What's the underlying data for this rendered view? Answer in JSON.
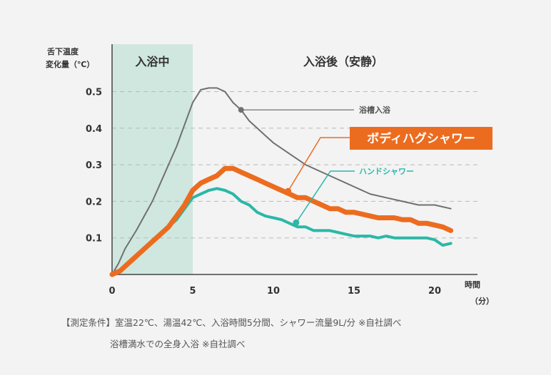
{
  "chart_data": {
    "type": "line",
    "ylabel_line1": "舌下温度",
    "ylabel_line2": "変化量（℃）",
    "xlabel_line1": "時間",
    "xlabel_line2": "（分）",
    "xlim": [
      0,
      22
    ],
    "ylim": [
      0,
      0.55
    ],
    "x_ticks": [
      0,
      5,
      10,
      15,
      20
    ],
    "x_tick_labels": [
      "0",
      "5",
      "10",
      "15",
      "20"
    ],
    "y_ticks": [
      0.1,
      0.2,
      0.3,
      0.4,
      0.5
    ],
    "y_tick_labels": [
      "0.1",
      "0.2",
      "0.3",
      "0.4",
      "0.5"
    ],
    "grid": "horizontal dashed",
    "zones": [
      {
        "label": "入浴中",
        "x_start": 0,
        "x_end": 5,
        "color": "#cfe7df"
      },
      {
        "label": "入浴後（安静）",
        "x_start": 5,
        "x_end": 21
      }
    ],
    "series": [
      {
        "name": "浴槽入浴",
        "color": "#707070",
        "width": 2,
        "x": [
          0,
          0.4,
          0.8,
          1.5,
          2,
          2.5,
          3,
          3.5,
          4,
          4.5,
          5,
          5.5,
          6,
          6.5,
          7,
          7.5,
          8,
          8.5,
          9,
          9.5,
          10,
          11,
          12,
          13,
          14,
          15,
          16,
          17,
          18,
          19,
          20,
          21
        ],
        "values": [
          0,
          0.03,
          0.07,
          0.12,
          0.16,
          0.2,
          0.25,
          0.3,
          0.35,
          0.41,
          0.47,
          0.505,
          0.51,
          0.51,
          0.5,
          0.47,
          0.45,
          0.42,
          0.4,
          0.38,
          0.36,
          0.33,
          0.3,
          0.28,
          0.26,
          0.24,
          0.22,
          0.21,
          0.2,
          0.19,
          0.19,
          0.18
        ]
      },
      {
        "name": "ボディハグシャワー",
        "color": "#ec6c1f",
        "width": 7,
        "x": [
          0,
          0.5,
          1,
          1.5,
          2,
          2.5,
          3,
          3.5,
          4,
          4.5,
          5,
          5.5,
          6,
          6.5,
          7,
          7.5,
          8,
          8.5,
          9,
          9.5,
          10,
          10.5,
          11,
          11.5,
          12,
          12.5,
          13,
          13.5,
          14,
          14.5,
          15,
          15.5,
          16,
          16.5,
          17,
          17.5,
          18,
          18.5,
          19,
          19.5,
          20,
          20.5,
          21
        ],
        "values": [
          0,
          0.01,
          0.03,
          0.05,
          0.07,
          0.09,
          0.11,
          0.13,
          0.16,
          0.19,
          0.23,
          0.25,
          0.26,
          0.27,
          0.29,
          0.29,
          0.28,
          0.27,
          0.26,
          0.25,
          0.24,
          0.23,
          0.22,
          0.21,
          0.21,
          0.2,
          0.19,
          0.18,
          0.18,
          0.17,
          0.17,
          0.165,
          0.16,
          0.155,
          0.155,
          0.155,
          0.15,
          0.15,
          0.14,
          0.14,
          0.135,
          0.13,
          0.12
        ]
      },
      {
        "name": "ハンドシャワー",
        "color": "#2bb8a6",
        "width": 4,
        "x": [
          0,
          0.5,
          1,
          1.5,
          2,
          2.5,
          3,
          3.5,
          4,
          4.5,
          5,
          5.5,
          6,
          6.5,
          7,
          7.5,
          8,
          8.5,
          9,
          9.5,
          10,
          10.5,
          11,
          11.5,
          12,
          12.5,
          13,
          13.5,
          14,
          14.5,
          15,
          15.5,
          16,
          16.5,
          17,
          17.5,
          18,
          18.5,
          19,
          19.5,
          20,
          20.5,
          21
        ],
        "values": [
          0,
          0.01,
          0.03,
          0.05,
          0.07,
          0.09,
          0.11,
          0.13,
          0.15,
          0.18,
          0.21,
          0.22,
          0.23,
          0.235,
          0.23,
          0.22,
          0.2,
          0.19,
          0.17,
          0.16,
          0.155,
          0.15,
          0.14,
          0.13,
          0.13,
          0.12,
          0.12,
          0.12,
          0.115,
          0.11,
          0.105,
          0.105,
          0.105,
          0.1,
          0.105,
          0.1,
          0.1,
          0.1,
          0.1,
          0.1,
          0.095,
          0.08,
          0.085
        ]
      }
    ],
    "annotations": [
      {
        "text": "浴槽入浴",
        "series": "浴槽入浴",
        "at_x": 8
      },
      {
        "text": "ボディハグシャワー",
        "series": "ボディハグシャワー",
        "at_x": 11,
        "boxed": true
      },
      {
        "text": "ハンドシャワー",
        "series": "ハンドシャワー",
        "at_x": 11.5
      }
    ]
  },
  "notes": {
    "line1": "【測定条件】室温22℃、湯温42℃、入浴時間5分間、シャワー流量9L/分 ※自社調べ",
    "line2": "浴槽満水での全身入浴 ※自社調べ"
  }
}
